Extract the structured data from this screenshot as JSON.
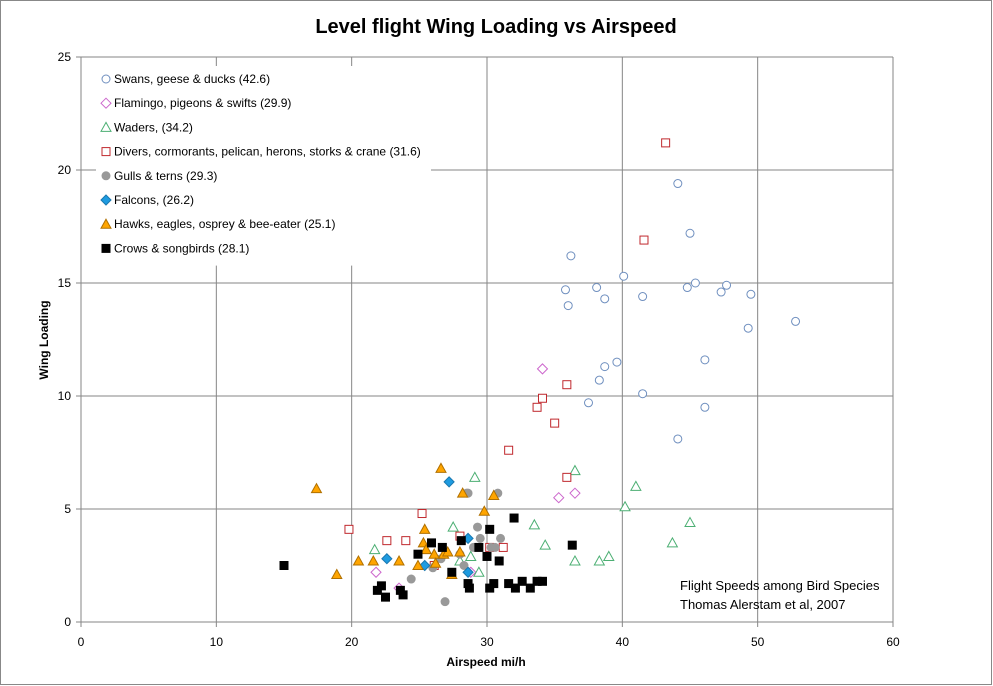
{
  "chart_data": {
    "type": "scatter",
    "title": "Level flight Wing Loading vs Airspeed",
    "xlabel": "Airspeed  mi/h",
    "ylabel": "Wing Loading",
    "xlim": [
      0,
      60
    ],
    "ylim": [
      0,
      25
    ],
    "x_ticks": [
      0,
      10,
      20,
      30,
      40,
      50,
      60
    ],
    "y_ticks": [
      0,
      5,
      10,
      15,
      20,
      25
    ],
    "grid": true,
    "legend_position": "top-left",
    "annotation": [
      "Flight Speeds among Bird Species",
      "Thomas Alerstam et al, 2007"
    ],
    "series": [
      {
        "name": "Swans, geese & ducks (42.6)",
        "marker": "circle-open",
        "color": "#6f8fbf",
        "points": [
          [
            36.2,
            16.2
          ],
          [
            35.8,
            14.7
          ],
          [
            36.0,
            14.0
          ],
          [
            38.1,
            14.8
          ],
          [
            38.7,
            14.3
          ],
          [
            40.1,
            15.3
          ],
          [
            41.5,
            14.4
          ],
          [
            44.1,
            19.4
          ],
          [
            45.0,
            17.2
          ],
          [
            44.8,
            14.8
          ],
          [
            45.4,
            15.0
          ],
          [
            47.3,
            14.6
          ],
          [
            47.7,
            14.9
          ],
          [
            49.5,
            14.5
          ],
          [
            49.3,
            13.0
          ],
          [
            52.8,
            13.3
          ],
          [
            38.7,
            11.3
          ],
          [
            38.3,
            10.7
          ],
          [
            39.6,
            11.5
          ],
          [
            37.5,
            9.7
          ],
          [
            41.5,
            10.1
          ],
          [
            46.1,
            11.6
          ],
          [
            46.1,
            9.5
          ],
          [
            44.1,
            8.1
          ]
        ]
      },
      {
        "name": "Flamingo, pigeons & swifts  (29.9)",
        "marker": "diamond-open",
        "color": "#cc66cc",
        "points": [
          [
            34.1,
            11.2
          ],
          [
            35.3,
            5.5
          ],
          [
            36.5,
            5.7
          ],
          [
            21.8,
            2.2
          ],
          [
            23.5,
            1.5
          ],
          [
            28.8,
            2.2
          ]
        ]
      },
      {
        "name": "Waders,  (34.2)",
        "marker": "triangle-open",
        "color": "#4caf73",
        "points": [
          [
            21.7,
            3.2
          ],
          [
            27.5,
            4.2
          ],
          [
            28.0,
            2.7
          ],
          [
            28.8,
            2.9
          ],
          [
            29.1,
            6.4
          ],
          [
            29.4,
            2.2
          ],
          [
            33.5,
            4.3
          ],
          [
            34.3,
            3.4
          ],
          [
            36.5,
            6.7
          ],
          [
            36.5,
            2.7
          ],
          [
            38.3,
            2.7
          ],
          [
            39.0,
            2.9
          ],
          [
            40.2,
            5.1
          ],
          [
            41.0,
            6.0
          ],
          [
            43.7,
            3.5
          ],
          [
            45.0,
            4.4
          ]
        ]
      },
      {
        "name": "Divers, cormorants, pelican, herons, storks & crane (31.6)",
        "marker": "square-open",
        "color": "#c0282d",
        "points": [
          [
            19.8,
            4.1
          ],
          [
            22.6,
            3.6
          ],
          [
            24.0,
            3.6
          ],
          [
            25.2,
            4.8
          ],
          [
            26.1,
            2.5
          ],
          [
            28.0,
            3.8
          ],
          [
            30.2,
            3.3
          ],
          [
            31.2,
            3.3
          ],
          [
            31.6,
            7.6
          ],
          [
            33.7,
            9.5
          ],
          [
            34.1,
            9.9
          ],
          [
            35.0,
            8.8
          ],
          [
            35.9,
            6.4
          ],
          [
            35.9,
            10.5
          ],
          [
            41.6,
            16.9
          ],
          [
            43.2,
            21.2
          ]
        ]
      },
      {
        "name": "Gulls & terns (29.3)",
        "marker": "circle-filled",
        "color": "#999999",
        "points": [
          [
            24.4,
            1.9
          ],
          [
            26.0,
            2.4
          ],
          [
            26.6,
            2.8
          ],
          [
            26.9,
            0.9
          ],
          [
            28.0,
            3.0
          ],
          [
            28.3,
            2.5
          ],
          [
            28.5,
            5.7
          ],
          [
            28.6,
            5.7
          ],
          [
            29.0,
            3.3
          ],
          [
            29.3,
            4.2
          ],
          [
            29.5,
            3.7
          ],
          [
            30.3,
            3.3
          ],
          [
            30.6,
            3.3
          ],
          [
            30.8,
            5.7
          ],
          [
            31.0,
            3.7
          ]
        ]
      },
      {
        "name": "Falcons, (26.2)",
        "marker": "diamond-filled",
        "color": "#1e9be0",
        "points": [
          [
            22.6,
            2.8
          ],
          [
            25.4,
            2.5
          ],
          [
            27.2,
            6.2
          ],
          [
            28.6,
            2.2
          ],
          [
            28.6,
            3.7
          ]
        ]
      },
      {
        "name": "Hawks, eagles, osprey & bee-eater (25.1)",
        "marker": "triangle-filled",
        "color": "#ffa500",
        "points": [
          [
            17.4,
            5.9
          ],
          [
            18.9,
            2.1
          ],
          [
            20.5,
            2.7
          ],
          [
            21.6,
            2.7
          ],
          [
            23.5,
            2.7
          ],
          [
            24.9,
            2.5
          ],
          [
            25.3,
            3.5
          ],
          [
            25.5,
            3.2
          ],
          [
            25.4,
            4.1
          ],
          [
            26.1,
            3.0
          ],
          [
            26.2,
            2.6
          ],
          [
            26.6,
            6.8
          ],
          [
            26.8,
            3.0
          ],
          [
            27.1,
            3.1
          ],
          [
            27.4,
            2.1
          ],
          [
            28.0,
            3.1
          ],
          [
            28.2,
            5.7
          ],
          [
            29.8,
            4.9
          ],
          [
            30.5,
            5.6
          ]
        ]
      },
      {
        "name": "Crows & songbirds (28.1)",
        "marker": "square-filled",
        "color": "#000000",
        "points": [
          [
            15.0,
            2.5
          ],
          [
            21.9,
            1.4
          ],
          [
            22.2,
            1.6
          ],
          [
            22.5,
            1.1
          ],
          [
            23.6,
            1.4
          ],
          [
            23.8,
            1.2
          ],
          [
            24.9,
            3.0
          ],
          [
            25.9,
            3.5
          ],
          [
            26.7,
            3.3
          ],
          [
            27.4,
            2.2
          ],
          [
            28.1,
            3.6
          ],
          [
            28.6,
            1.7
          ],
          [
            28.7,
            1.5
          ],
          [
            29.4,
            3.3
          ],
          [
            30.0,
            2.9
          ],
          [
            30.2,
            1.5
          ],
          [
            30.2,
            4.1
          ],
          [
            30.5,
            1.7
          ],
          [
            30.9,
            2.7
          ],
          [
            31.6,
            1.7
          ],
          [
            32.0,
            4.6
          ],
          [
            32.1,
            1.5
          ],
          [
            32.6,
            1.8
          ],
          [
            33.2,
            1.5
          ],
          [
            33.7,
            1.8
          ],
          [
            34.1,
            1.8
          ],
          [
            36.3,
            3.4
          ]
        ]
      }
    ]
  }
}
